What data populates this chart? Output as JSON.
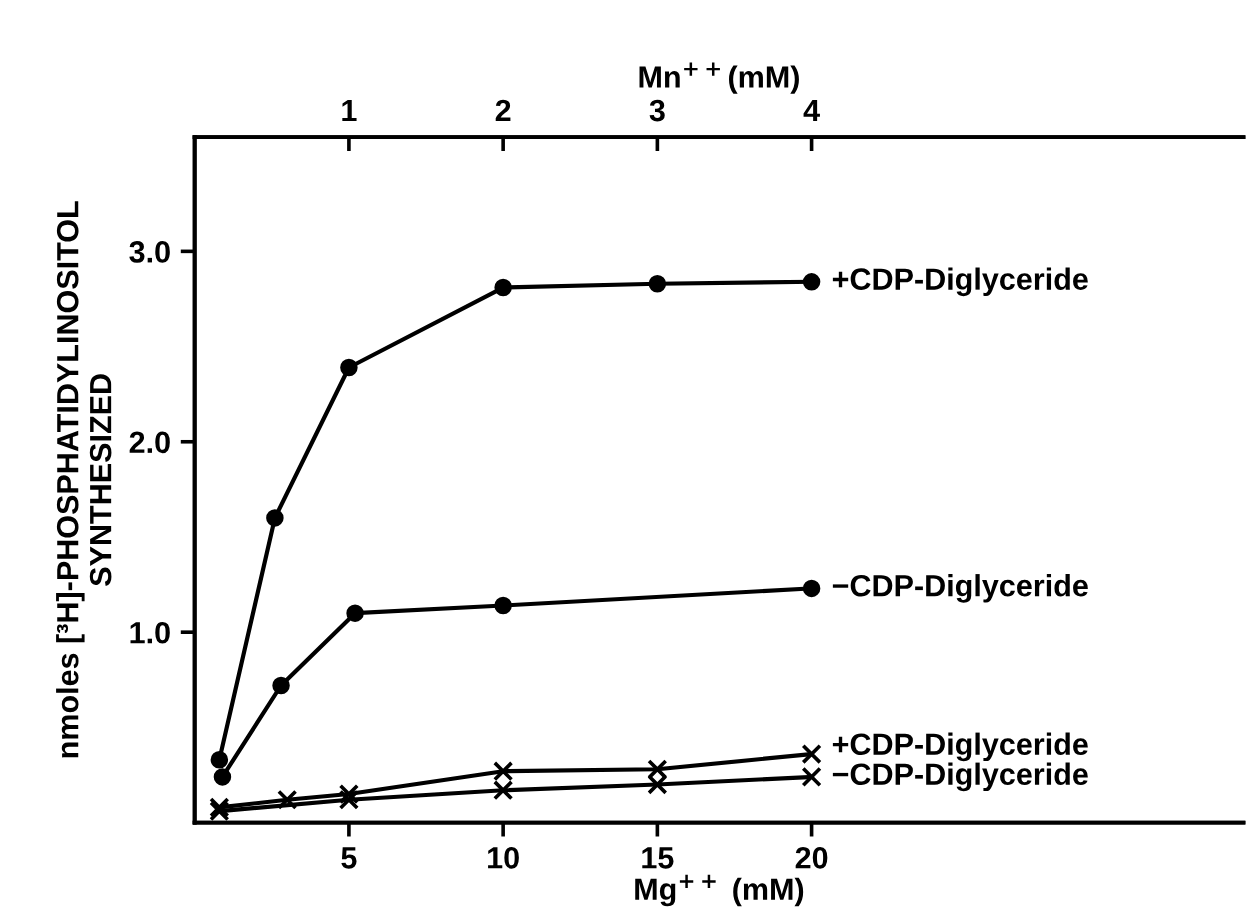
{
  "chart_data": {
    "type": "line",
    "xlabel": "Mg$^{++}$ (mM)",
    "ylabel": "nmoles [³H]-PHOSPHATIDYLINOSITOL\nSYNTHESIZED",
    "x2label": "Mn$^{++}$(mM)",
    "xlim": [
      0,
      34
    ],
    "xticks": [
      5,
      10,
      15,
      20
    ],
    "x2lim": [
      0,
      6.8
    ],
    "x2ticks": [
      1,
      2,
      3,
      4
    ],
    "ylim": [
      0,
      3.6
    ],
    "yticks": [
      {
        "value": 1,
        "label": "1.0"
      },
      {
        "value": 2,
        "label": "2.0"
      },
      {
        "value": 3,
        "label": "3.0"
      }
    ],
    "grid": false,
    "legend": false,
    "line_style": "solid",
    "series": [
      {
        "name": "+CDP-Diglyceride",
        "color": "#000000",
        "marker": "circle",
        "x": [
          0.8,
          2.6,
          5,
          10,
          15,
          20
        ],
        "values": [
          0.33,
          1.6,
          2.39,
          2.81,
          2.83,
          2.84
        ]
      },
      {
        "name": "−CDP-Diglyceride",
        "color": "#000000",
        "marker": "circle",
        "x": [
          0.9,
          2.8,
          5.2,
          10,
          20
        ],
        "values": [
          0.24,
          0.72,
          1.1,
          1.14,
          1.23
        ]
      },
      {
        "name": "+CDP-Diglyceride",
        "color": "#000000",
        "marker": "cross",
        "x": [
          0.8,
          3,
          5,
          10,
          15,
          20
        ],
        "values": [
          0.08,
          0.12,
          0.15,
          0.27,
          0.28,
          0.36
        ]
      },
      {
        "name": "−CDP-Diglyceride",
        "color": "#000000",
        "marker": "cross",
        "x": [
          0.8,
          5,
          10,
          15,
          20
        ],
        "values": [
          0.06,
          0.12,
          0.17,
          0.2,
          0.24
        ]
      }
    ]
  }
}
